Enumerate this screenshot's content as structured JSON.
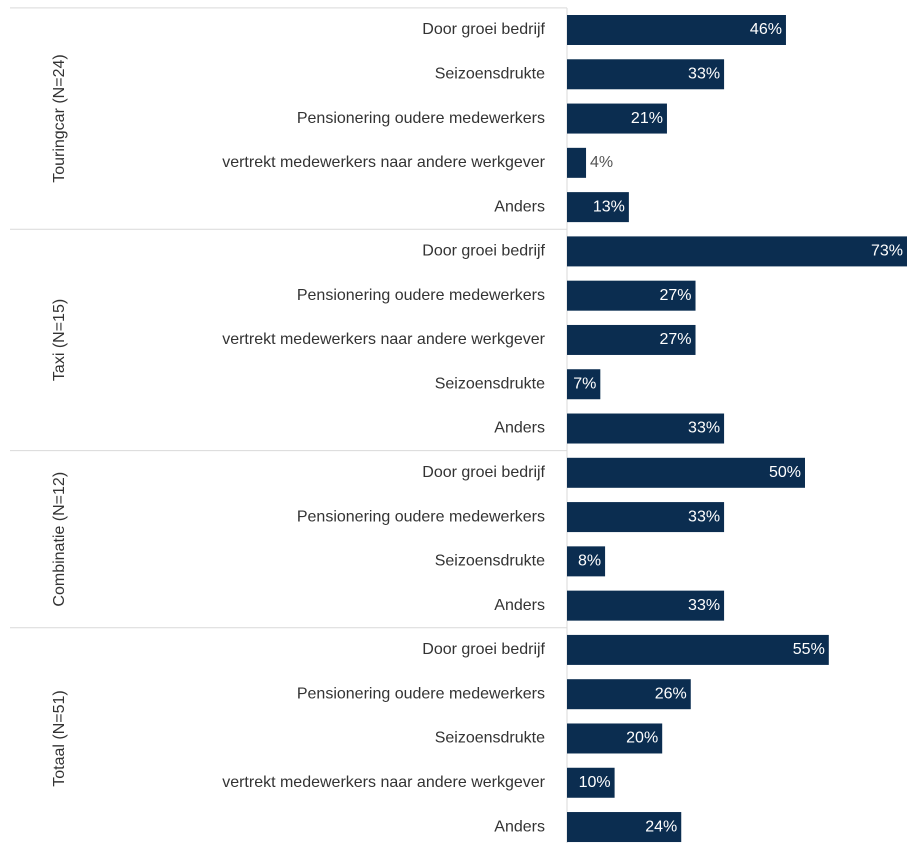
{
  "chart_data": {
    "type": "bar",
    "orientation": "horizontal",
    "color": "#0b2d50",
    "groups": [
      {
        "name": "Touringcar (N=24)",
        "categories": [
          "Door groei bedrijf",
          "Seizoensdrukte",
          "Pensionering oudere medewerkers",
          "vertrekt medewerkers naar andere werkgever",
          "Anders"
        ],
        "values": [
          46,
          33,
          21,
          4,
          13
        ],
        "value_labels": [
          "46%",
          "33%",
          "21%",
          "4%",
          "13%"
        ]
      },
      {
        "name": "Taxi (N=15)",
        "categories": [
          "Door groei bedrijf",
          "Pensionering oudere medewerkers",
          "vertrekt medewerkers naar andere werkgever",
          "Seizoensdrukte",
          "Anders"
        ],
        "values": [
          73,
          27,
          27,
          7,
          33
        ],
        "value_labels": [
          "73%",
          "27%",
          "27%",
          "7%",
          "33%"
        ]
      },
      {
        "name": "Combinatie (N=12)",
        "categories": [
          "Door groei bedrijf",
          "Pensionering oudere medewerkers",
          "Seizoensdrukte",
          "Anders"
        ],
        "values": [
          50,
          33,
          8,
          33
        ],
        "value_labels": [
          "50%",
          "33%",
          "8%",
          "33%"
        ]
      },
      {
        "name": "Totaal (N=51)",
        "categories": [
          "Door groei bedrijf",
          "Pensionering oudere medewerkers",
          "Seizoensdrukte",
          "vertrekt medewerkers naar andere werkgever",
          "Anders"
        ],
        "values": [
          55,
          26,
          20,
          10,
          24
        ],
        "value_labels": [
          "55%",
          "26%",
          "20%",
          "10%",
          "24%"
        ]
      }
    ]
  }
}
